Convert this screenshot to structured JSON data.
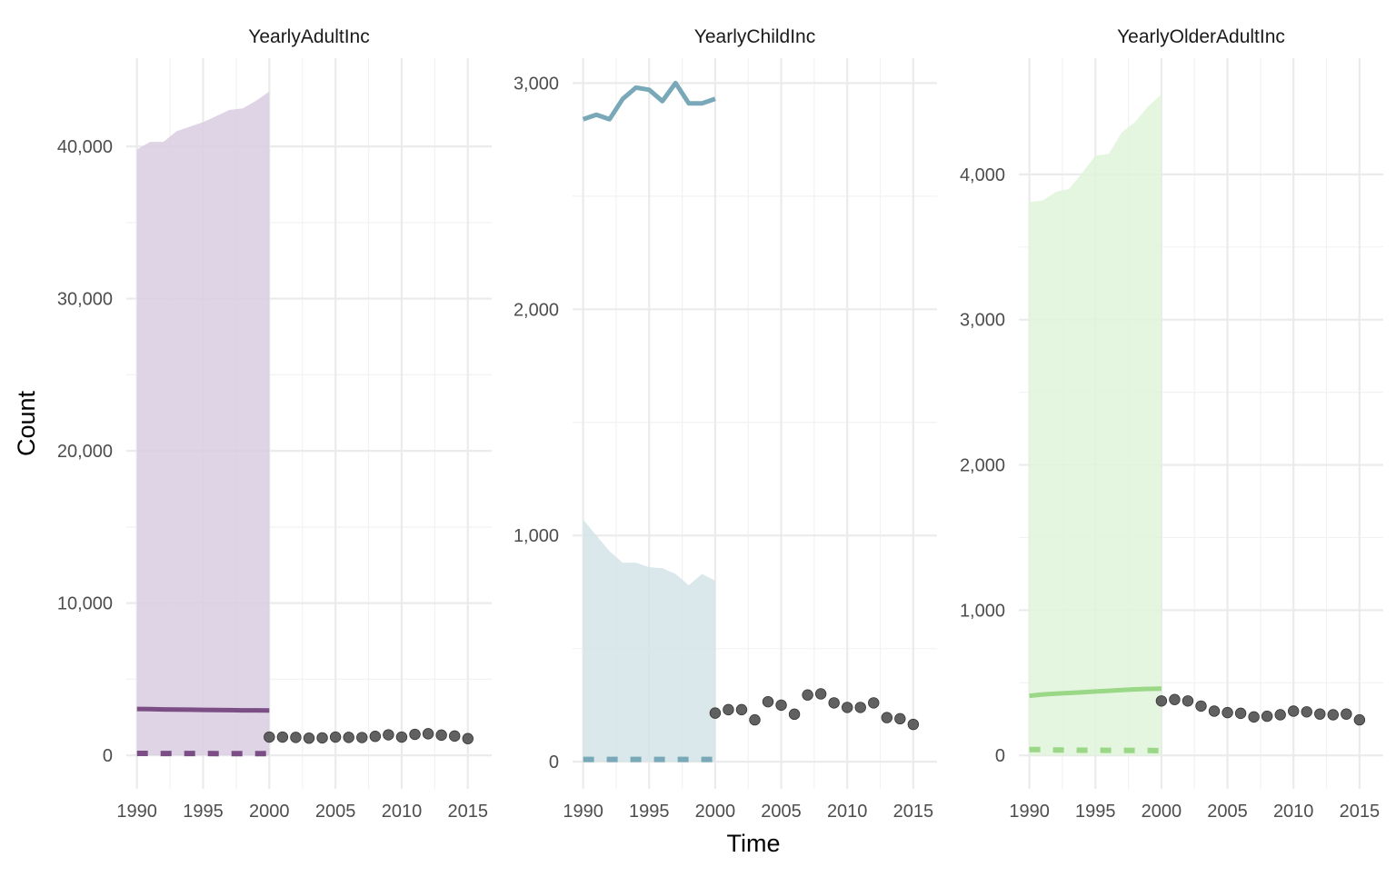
{
  "chart_data": [
    {
      "type": "line",
      "title": "YearlyAdultInc",
      "colors": {
        "series": "#7b4f86",
        "band": "#d9cde0",
        "points": "#505050"
      },
      "xlim": [
        1989.2,
        2016.8
      ],
      "ylim": [
        -2200,
        45800
      ],
      "x_ticks": [
        1990,
        1995,
        2000,
        2005,
        2010,
        2015
      ],
      "x_tick_labels": [
        "1990",
        "1995",
        "2000",
        "2005",
        "2010",
        "2015"
      ],
      "y_ticks": [
        0,
        10000,
        20000,
        30000,
        40000
      ],
      "y_tick_labels": [
        "0",
        "10,000",
        "20,000",
        "30,000",
        "40,000"
      ],
      "band_x": [
        1990,
        1991,
        1992,
        1993,
        1994,
        1995,
        1996,
        1997,
        1998,
        1999,
        2000
      ],
      "band_lower": [
        0,
        0,
        0,
        0,
        0,
        0,
        0,
        0,
        0,
        0,
        0
      ],
      "band_upper": [
        39800,
        40300,
        40300,
        41000,
        41300,
        41600,
        42000,
        42400,
        42500,
        43000,
        43600
      ],
      "solid_x": [
        1990,
        1991,
        1992,
        1993,
        1994,
        1995,
        1996,
        1997,
        1998,
        1999,
        2000
      ],
      "solid_y": [
        3050,
        3040,
        3020,
        3010,
        3000,
        2990,
        2980,
        2970,
        2960,
        2960,
        2950
      ],
      "dashed_x": [
        1990,
        1991,
        1992,
        1993,
        1994,
        1995,
        1996,
        1997,
        1998,
        1999,
        2000
      ],
      "dashed_y": [
        130,
        130,
        125,
        125,
        120,
        120,
        118,
        116,
        115,
        115,
        114
      ],
      "points_x": [
        2000,
        2001,
        2002,
        2003,
        2004,
        2005,
        2006,
        2007,
        2008,
        2009,
        2010,
        2011,
        2012,
        2013,
        2014,
        2015
      ],
      "points_y": [
        1200,
        1200,
        1180,
        1130,
        1150,
        1200,
        1180,
        1170,
        1250,
        1350,
        1200,
        1380,
        1420,
        1330,
        1270,
        1100
      ]
    },
    {
      "type": "line",
      "title": "YearlyChildInc",
      "colors": {
        "series": "#79a9b8",
        "band": "#d4e3e8",
        "points": "#505050"
      },
      "xlim": [
        1989.2,
        2016.8
      ],
      "ylim": [
        -120,
        3110
      ],
      "x_ticks": [
        1990,
        1995,
        2000,
        2005,
        2010,
        2015
      ],
      "x_tick_labels": [
        "1990",
        "1995",
        "2000",
        "2005",
        "2010",
        "2015"
      ],
      "y_ticks": [
        0,
        1000,
        2000,
        3000
      ],
      "y_tick_labels": [
        "0",
        "1,000",
        "2,000",
        "3,000"
      ],
      "band_x": [
        1990,
        1991,
        1992,
        1993,
        1994,
        1995,
        1996,
        1997,
        1998,
        1999,
        2000
      ],
      "band_lower": [
        0,
        0,
        0,
        0,
        0,
        0,
        0,
        0,
        0,
        0,
        0
      ],
      "band_upper": [
        1070,
        1000,
        930,
        880,
        880,
        860,
        855,
        830,
        780,
        830,
        800
      ],
      "solid_x": [
        1990,
        1991,
        1992,
        1993,
        1994,
        1995,
        1996,
        1997,
        1998,
        1999,
        2000
      ],
      "solid_y": [
        2840,
        2860,
        2840,
        2930,
        2980,
        2970,
        2920,
        3000,
        2910,
        2910,
        2930
      ],
      "dashed_x": [
        1990,
        1991,
        1992,
        1993,
        1994,
        1995,
        1996,
        1997,
        1998,
        1999,
        2000
      ],
      "dashed_y": [
        10,
        10,
        10,
        10,
        10,
        10,
        10,
        10,
        10,
        10,
        10
      ],
      "points_x": [
        2000,
        2001,
        2002,
        2003,
        2004,
        2005,
        2006,
        2007,
        2008,
        2009,
        2010,
        2011,
        2012,
        2013,
        2014,
        2015
      ],
      "points_y": [
        215,
        230,
        230,
        185,
        265,
        250,
        210,
        295,
        300,
        260,
        240,
        240,
        260,
        195,
        190,
        165
      ]
    },
    {
      "type": "line",
      "title": "YearlyOlderAdultInc",
      "colors": {
        "series": "#9ad787",
        "band": "#e0f4da",
        "points": "#505050"
      },
      "xlim": [
        1989.2,
        2016.8
      ],
      "ylim": [
        -230,
        4800
      ],
      "x_ticks": [
        1990,
        1995,
        2000,
        2005,
        2010,
        2015
      ],
      "x_tick_labels": [
        "1990",
        "1995",
        "2000",
        "2005",
        "2010",
        "2015"
      ],
      "y_ticks": [
        0,
        1000,
        2000,
        3000,
        4000
      ],
      "y_tick_labels": [
        "0",
        "1,000",
        "2,000",
        "3,000",
        "4,000"
      ],
      "band_x": [
        1990,
        1991,
        1992,
        1993,
        1994,
        1995,
        1996,
        1997,
        1998,
        1999,
        2000
      ],
      "band_lower": [
        0,
        0,
        0,
        0,
        0,
        0,
        0,
        0,
        0,
        0,
        0
      ],
      "band_upper": [
        3810,
        3820,
        3880,
        3900,
        4010,
        4130,
        4140,
        4290,
        4360,
        4470,
        4550
      ],
      "solid_x": [
        1990,
        1991,
        1992,
        1993,
        1994,
        1995,
        1996,
        1997,
        1998,
        1999,
        2000
      ],
      "solid_y": [
        410,
        420,
        425,
        430,
        435,
        440,
        445,
        450,
        455,
        458,
        460
      ],
      "dashed_x": [
        1990,
        1991,
        1992,
        1993,
        1994,
        1995,
        1996,
        1997,
        1998,
        1999,
        2000
      ],
      "dashed_y": [
        40,
        40,
        38,
        37,
        36,
        36,
        35,
        35,
        34,
        34,
        33
      ],
      "points_x": [
        2000,
        2001,
        2002,
        2003,
        2004,
        2005,
        2006,
        2007,
        2008,
        2009,
        2010,
        2011,
        2012,
        2013,
        2014,
        2015
      ],
      "points_y": [
        375,
        385,
        375,
        340,
        305,
        295,
        290,
        265,
        270,
        280,
        305,
        300,
        285,
        280,
        285,
        245
      ]
    }
  ],
  "axes": {
    "xlabel": "Time",
    "ylabel": "Count"
  }
}
